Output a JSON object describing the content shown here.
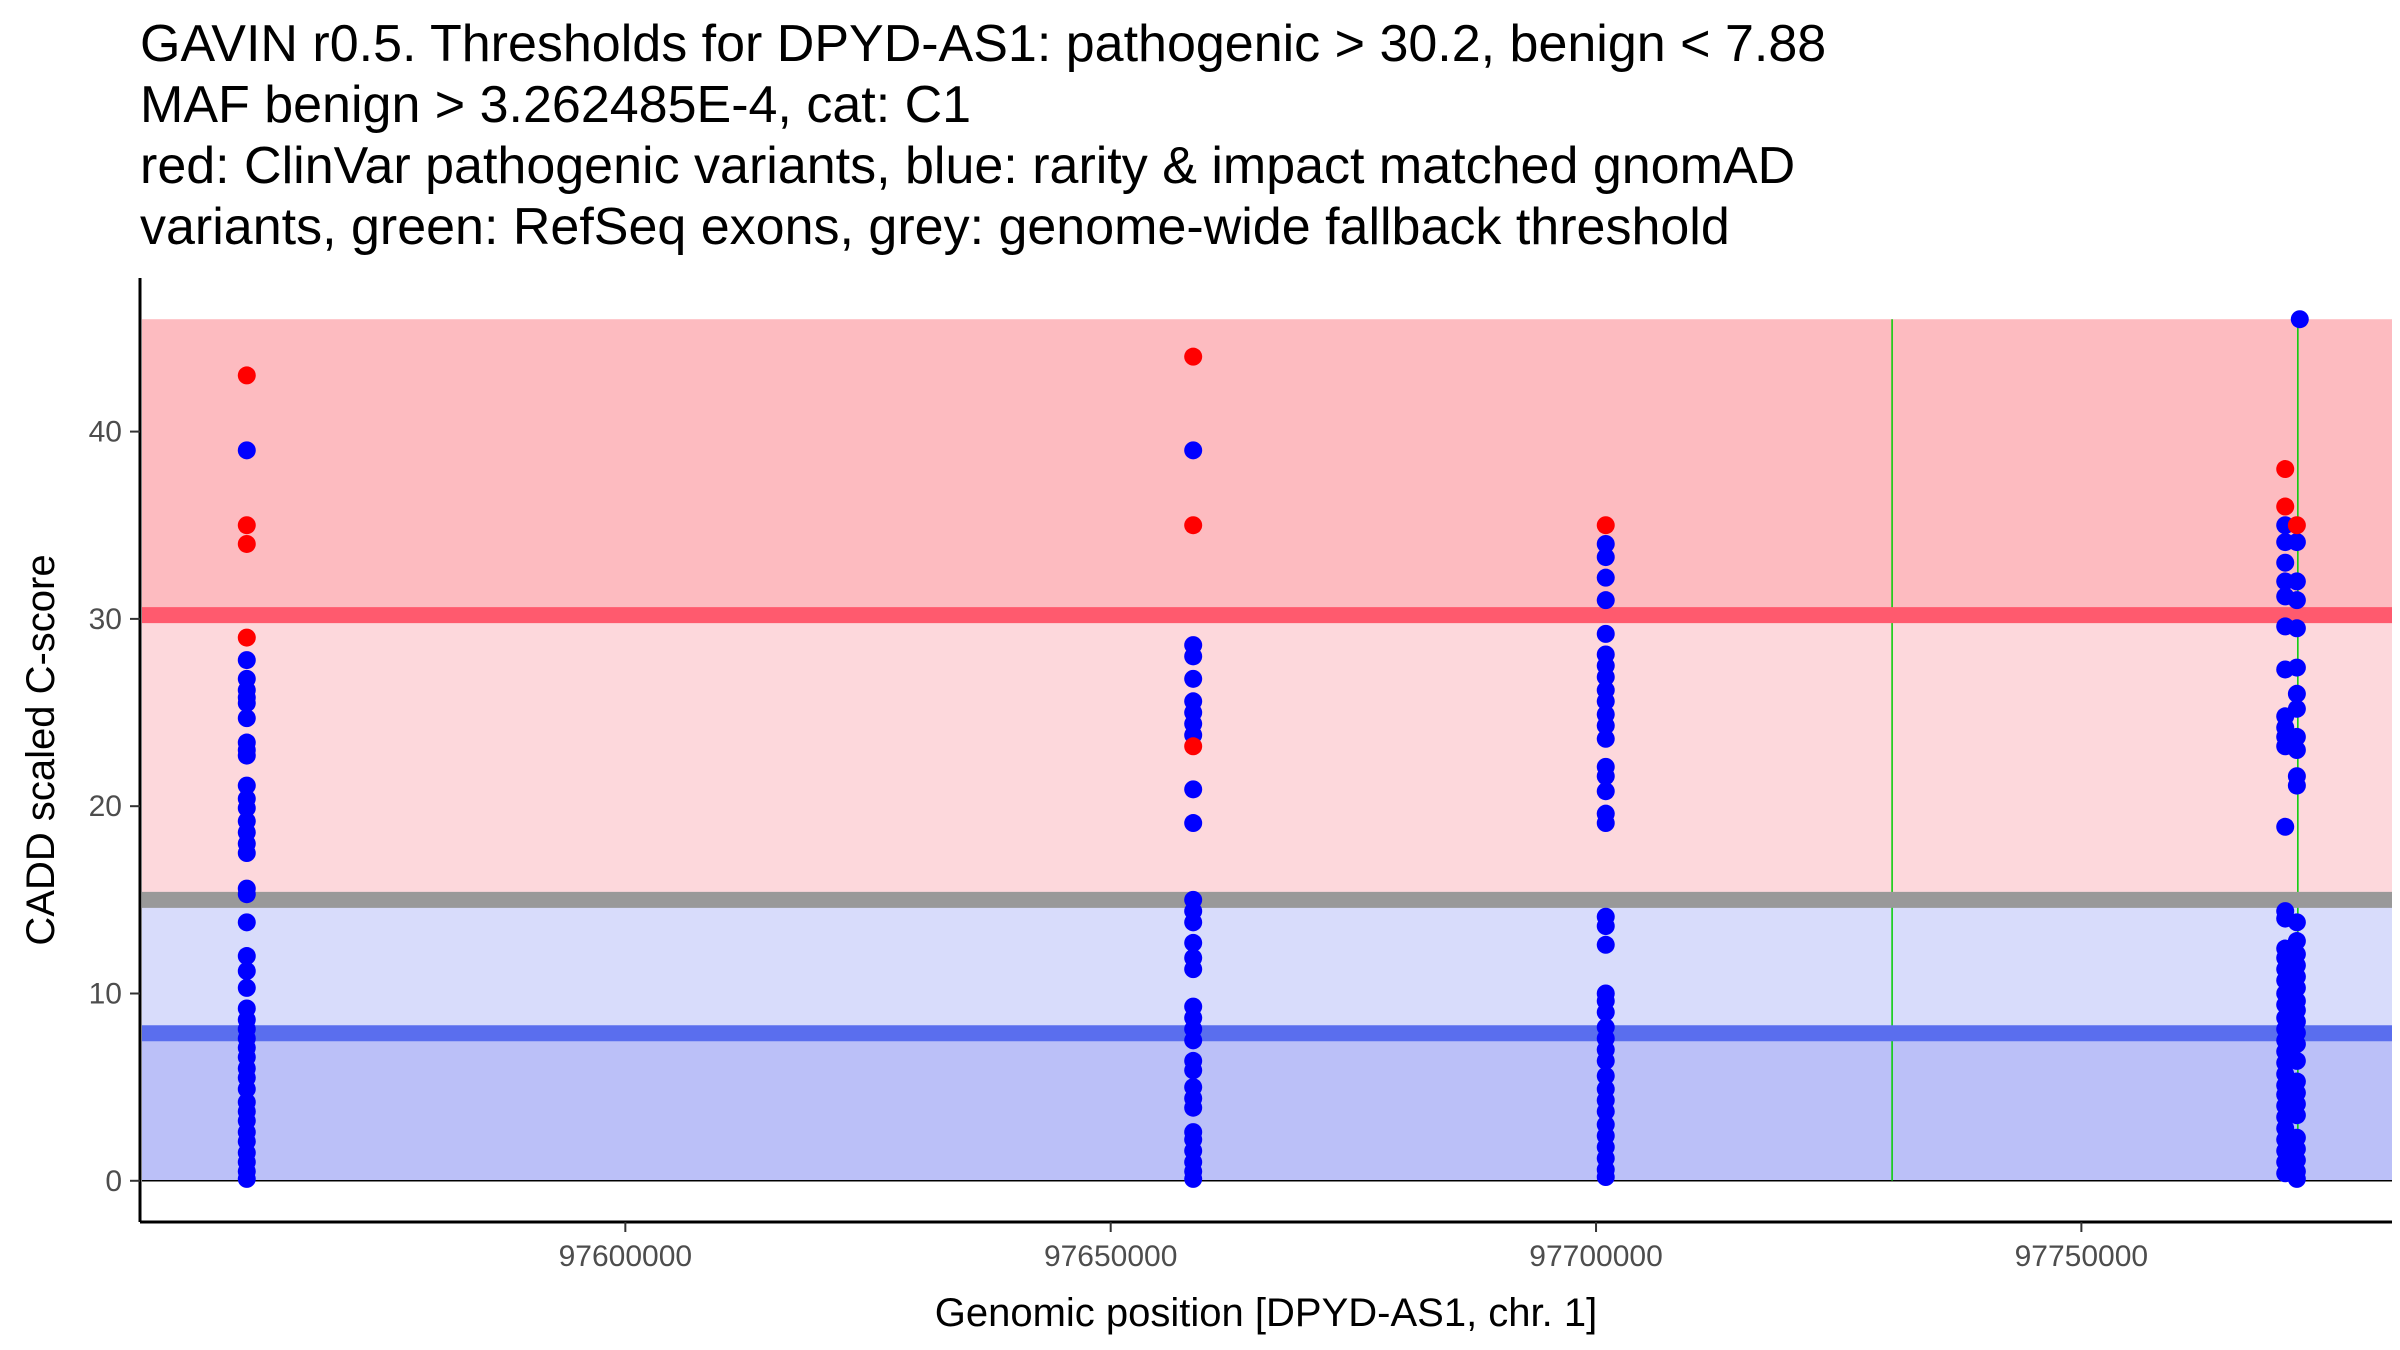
{
  "title_lines": [
    "GAVIN r0.5. Thresholds for DPYD-AS1: pathogenic > 30.2, benign < 7.88",
    "MAF benign > 3.262485E-4, cat: C1",
    "red: ClinVar pathogenic variants, blue: rarity & impact matched gnomAD",
    "variants, green: RefSeq exons, grey: genome-wide fallback threshold"
  ],
  "colors": {
    "pathogenic_point": "#ff0000",
    "benign_point": "#0000ff",
    "exon_line": "#00cc00",
    "pathogenic_threshold": "#ff5a6e",
    "benign_threshold": "#5a6eee",
    "fallback_threshold": "#999999",
    "band_strong_pathogenic": "#fdbbc0",
    "band_light_pathogenic": "#fdd8dc",
    "band_light_benign": "#d8dcfb",
    "band_strong_benign": "#bbc0f8"
  },
  "chart_data": {
    "type": "scatter",
    "title": "GAVIN r0.5. Thresholds for DPYD-AS1: pathogenic > 30.2, benign < 7.88",
    "xlabel": "Genomic position [DPYD-AS1, chr. 1]",
    "ylabel": "CADD scaled C-score",
    "xlim": [
      97550000,
      97782000
    ],
    "ylim": [
      -2.2,
      48.2
    ],
    "x_ticks": [
      97600000,
      97650000,
      97700000,
      97750000
    ],
    "x_tick_labels": [
      "97600000",
      "97650000",
      "97700000",
      "97750000"
    ],
    "y_ticks": [
      0,
      10,
      20,
      30,
      40
    ],
    "y_tick_labels": [
      "0",
      "10",
      "20",
      "30",
      "40"
    ],
    "thresholds": {
      "pathogenic": 30.2,
      "benign": 7.88,
      "fallback": 15.0,
      "max_score": 46.0
    },
    "exon_positions": [
      97730500,
      97772300
    ],
    "series": [
      {
        "name": "ClinVar pathogenic",
        "color": "red",
        "points": [
          [
            97561000,
            43.0
          ],
          [
            97561000,
            35.0
          ],
          [
            97561000,
            34.0
          ],
          [
            97561000,
            29.0
          ],
          [
            97658500,
            44.0
          ],
          [
            97658500,
            35.0
          ],
          [
            97658500,
            23.2
          ],
          [
            97701000,
            35.0
          ],
          [
            97771000,
            38.0
          ],
          [
            97771000,
            36.0
          ],
          [
            97772200,
            35.0
          ]
        ]
      },
      {
        "name": "gnomAD rarity & impact matched",
        "color": "blue",
        "points": [
          [
            97561000,
            39.0
          ],
          [
            97561000,
            27.8
          ],
          [
            97561000,
            26.8
          ],
          [
            97561000,
            26.2
          ],
          [
            97561000,
            25.8
          ],
          [
            97561000,
            25.5
          ],
          [
            97561000,
            24.7
          ],
          [
            97561000,
            23.4
          ],
          [
            97561000,
            23.0
          ],
          [
            97561000,
            22.7
          ],
          [
            97561000,
            21.1
          ],
          [
            97561000,
            20.4
          ],
          [
            97561000,
            19.9
          ],
          [
            97561000,
            19.2
          ],
          [
            97561000,
            18.6
          ],
          [
            97561000,
            18.0
          ],
          [
            97561000,
            17.5
          ],
          [
            97561000,
            15.6
          ],
          [
            97561000,
            15.3
          ],
          [
            97561000,
            13.8
          ],
          [
            97561000,
            12.0
          ],
          [
            97561000,
            11.2
          ],
          [
            97561000,
            10.3
          ],
          [
            97561000,
            9.2
          ],
          [
            97561000,
            8.6
          ],
          [
            97561000,
            8.1
          ],
          [
            97561000,
            7.6
          ],
          [
            97561000,
            7.1
          ],
          [
            97561000,
            6.6
          ],
          [
            97561000,
            6.0
          ],
          [
            97561000,
            5.5
          ],
          [
            97561000,
            4.9
          ],
          [
            97561000,
            4.2
          ],
          [
            97561000,
            3.7
          ],
          [
            97561000,
            3.2
          ],
          [
            97561000,
            2.6
          ],
          [
            97561000,
            2.1
          ],
          [
            97561000,
            1.5
          ],
          [
            97561000,
            1.0
          ],
          [
            97561000,
            0.5
          ],
          [
            97561000,
            0.1
          ],
          [
            97658500,
            39.0
          ],
          [
            97658500,
            28.6
          ],
          [
            97658500,
            28.0
          ],
          [
            97658500,
            26.8
          ],
          [
            97658500,
            25.6
          ],
          [
            97658500,
            25.0
          ],
          [
            97658500,
            24.4
          ],
          [
            97658500,
            23.8
          ],
          [
            97658500,
            20.9
          ],
          [
            97658500,
            19.1
          ],
          [
            97658500,
            15.0
          ],
          [
            97658500,
            14.4
          ],
          [
            97658500,
            13.8
          ],
          [
            97658500,
            12.7
          ],
          [
            97658500,
            11.9
          ],
          [
            97658500,
            11.3
          ],
          [
            97658500,
            9.3
          ],
          [
            97658500,
            8.7
          ],
          [
            97658500,
            8.1
          ],
          [
            97658500,
            7.5
          ],
          [
            97658500,
            6.4
          ],
          [
            97658500,
            5.9
          ],
          [
            97658500,
            5.0
          ],
          [
            97658500,
            4.4
          ],
          [
            97658500,
            3.9
          ],
          [
            97658500,
            2.6
          ],
          [
            97658500,
            2.2
          ],
          [
            97658500,
            1.6
          ],
          [
            97658500,
            1.0
          ],
          [
            97658500,
            0.5
          ],
          [
            97658500,
            0.1
          ],
          [
            97701000,
            34.0
          ],
          [
            97701000,
            33.3
          ],
          [
            97701000,
            32.2
          ],
          [
            97701000,
            31.0
          ],
          [
            97701000,
            29.2
          ],
          [
            97701000,
            28.1
          ],
          [
            97701000,
            27.5
          ],
          [
            97701000,
            26.9
          ],
          [
            97701000,
            26.2
          ],
          [
            97701000,
            25.6
          ],
          [
            97701000,
            24.9
          ],
          [
            97701000,
            24.3
          ],
          [
            97701000,
            23.6
          ],
          [
            97701000,
            22.1
          ],
          [
            97701000,
            21.6
          ],
          [
            97701000,
            20.8
          ],
          [
            97701000,
            19.6
          ],
          [
            97701000,
            19.1
          ],
          [
            97701000,
            14.1
          ],
          [
            97701000,
            13.6
          ],
          [
            97701000,
            12.6
          ],
          [
            97701000,
            10.0
          ],
          [
            97701000,
            9.6
          ],
          [
            97701000,
            9.0
          ],
          [
            97701000,
            8.2
          ],
          [
            97701000,
            7.6
          ],
          [
            97701000,
            7.0
          ],
          [
            97701000,
            6.4
          ],
          [
            97701000,
            5.6
          ],
          [
            97701000,
            4.9
          ],
          [
            97701000,
            4.3
          ],
          [
            97701000,
            3.7
          ],
          [
            97701000,
            3.0
          ],
          [
            97701000,
            2.4
          ],
          [
            97701000,
            1.8
          ],
          [
            97701000,
            1.2
          ],
          [
            97701000,
            0.6
          ],
          [
            97701000,
            0.2
          ],
          [
            97772500,
            46.0
          ],
          [
            97771000,
            35.0
          ],
          [
            97771000,
            34.1
          ],
          [
            97771000,
            33.0
          ],
          [
            97771000,
            32.0
          ],
          [
            97771000,
            31.2
          ],
          [
            97771000,
            29.6
          ],
          [
            97771000,
            27.3
          ],
          [
            97771000,
            24.8
          ],
          [
            97771000,
            24.2
          ],
          [
            97771000,
            23.7
          ],
          [
            97771000,
            23.2
          ],
          [
            97771000,
            18.9
          ],
          [
            97771000,
            14.4
          ],
          [
            97771000,
            14.0
          ],
          [
            97771000,
            12.4
          ],
          [
            97771000,
            11.9
          ],
          [
            97771000,
            11.3
          ],
          [
            97771000,
            10.7
          ],
          [
            97771000,
            10.0
          ],
          [
            97771000,
            9.4
          ],
          [
            97771000,
            8.7
          ],
          [
            97771000,
            8.1
          ],
          [
            97771000,
            7.5
          ],
          [
            97771000,
            6.9
          ],
          [
            97771000,
            6.3
          ],
          [
            97771000,
            5.7
          ],
          [
            97771000,
            5.1
          ],
          [
            97771000,
            4.6
          ],
          [
            97771000,
            4.0
          ],
          [
            97771000,
            3.4
          ],
          [
            97771000,
            2.8
          ],
          [
            97771000,
            2.2
          ],
          [
            97771000,
            1.6
          ],
          [
            97771000,
            1.0
          ],
          [
            97771000,
            0.4
          ],
          [
            97772200,
            34.1
          ],
          [
            97772200,
            32.0
          ],
          [
            97772200,
            31.0
          ],
          [
            97772200,
            29.5
          ],
          [
            97772200,
            27.4
          ],
          [
            97772200,
            26.0
          ],
          [
            97772200,
            25.2
          ],
          [
            97772200,
            23.7
          ],
          [
            97772200,
            23.0
          ],
          [
            97772200,
            21.6
          ],
          [
            97772200,
            21.1
          ],
          [
            97772200,
            13.8
          ],
          [
            97772200,
            12.8
          ],
          [
            97772200,
            12.1
          ],
          [
            97772200,
            11.5
          ],
          [
            97772200,
            10.9
          ],
          [
            97772200,
            10.3
          ],
          [
            97772200,
            9.6
          ],
          [
            97772200,
            9.1
          ],
          [
            97772200,
            8.5
          ],
          [
            97772200,
            7.9
          ],
          [
            97772200,
            7.3
          ],
          [
            97772200,
            6.4
          ],
          [
            97772200,
            5.3
          ],
          [
            97772200,
            4.7
          ],
          [
            97772200,
            4.1
          ],
          [
            97772200,
            3.5
          ],
          [
            97772200,
            2.3
          ],
          [
            97772200,
            1.7
          ],
          [
            97772200,
            1.1
          ],
          [
            97772200,
            0.5
          ],
          [
            97772200,
            0.1
          ]
        ]
      }
    ]
  }
}
